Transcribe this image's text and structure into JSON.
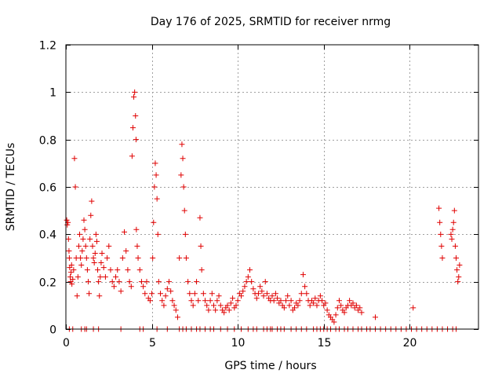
{
  "chart_data": {
    "type": "scatter",
    "title": "Day 176 of 2025, SRMTID for receiver nrmg",
    "xlabel": "GPS time / hours",
    "ylabel": "SRMTID / TECUs",
    "xlim": [
      0,
      24
    ],
    "ylim": [
      0,
      1.2
    ],
    "xticks": [
      0,
      5,
      10,
      15,
      20
    ],
    "yticks": [
      0,
      0.2,
      0.4,
      0.6,
      0.8,
      1,
      1.2
    ],
    "xtick_labels": [
      "0",
      "5",
      "10",
      "15",
      "20"
    ],
    "ytick_labels": [
      "0",
      "0.2",
      "0.4",
      "0.6",
      "0.8",
      "1",
      "1.2"
    ],
    "grid": true,
    "marker": "+",
    "color": "#e00000",
    "series": [
      {
        "name": "SRMTID",
        "points": [
          [
            0.05,
            0.46
          ],
          [
            0.08,
            0.44
          ],
          [
            0.12,
            0.45
          ],
          [
            0.15,
            0.38
          ],
          [
            0.18,
            0.33
          ],
          [
            0.2,
            0.3
          ],
          [
            0.22,
            0.26
          ],
          [
            0.25,
            0.22
          ],
          [
            0.28,
            0.2
          ],
          [
            0.3,
            0.24
          ],
          [
            0.33,
            0.27
          ],
          [
            0.35,
            0.19
          ],
          [
            0.4,
            0.21
          ],
          [
            0.45,
            0.25
          ],
          [
            0.5,
            0.72
          ],
          [
            0.55,
            0.6
          ],
          [
            0.6,
            0.3
          ],
          [
            0.65,
            0.14
          ],
          [
            0.7,
            0.22
          ],
          [
            0.75,
            0.35
          ],
          [
            0.8,
            0.4
          ],
          [
            0.85,
            0.3
          ],
          [
            0.9,
            0.27
          ],
          [
            0.95,
            0.33
          ],
          [
            1.0,
            0.38
          ],
          [
            1.05,
            0.46
          ],
          [
            1.1,
            0.42
          ],
          [
            1.15,
            0.35
          ],
          [
            1.2,
            0.3
          ],
          [
            1.25,
            0.25
          ],
          [
            1.3,
            0.2
          ],
          [
            1.35,
            0.15
          ],
          [
            1.4,
            0.38
          ],
          [
            1.45,
            0.48
          ],
          [
            1.5,
            0.54
          ],
          [
            1.55,
            0.35
          ],
          [
            1.6,
            0.3
          ],
          [
            1.65,
            0.28
          ],
          [
            1.7,
            0.32
          ],
          [
            1.75,
            0.4
          ],
          [
            1.8,
            0.37
          ],
          [
            1.85,
            0.25
          ],
          [
            1.9,
            0.2
          ],
          [
            1.95,
            0.14
          ],
          [
            2.0,
            0.22
          ],
          [
            2.05,
            0.28
          ],
          [
            2.1,
            0.32
          ],
          [
            2.2,
            0.26
          ],
          [
            2.3,
            0.22
          ],
          [
            2.4,
            0.3
          ],
          [
            2.5,
            0.35
          ],
          [
            2.6,
            0.25
          ],
          [
            2.7,
            0.2
          ],
          [
            2.8,
            0.18
          ],
          [
            2.9,
            0.22
          ],
          [
            3.0,
            0.25
          ],
          [
            3.1,
            0.2
          ],
          [
            3.2,
            0.16
          ],
          [
            3.3,
            0.3
          ],
          [
            3.4,
            0.41
          ],
          [
            3.5,
            0.33
          ],
          [
            3.6,
            0.25
          ],
          [
            3.7,
            0.2
          ],
          [
            3.8,
            0.18
          ],
          [
            3.85,
            0.73
          ],
          [
            3.9,
            0.85
          ],
          [
            3.95,
            0.98
          ],
          [
            4.0,
            1.0
          ],
          [
            4.05,
            0.9
          ],
          [
            4.08,
            0.8
          ],
          [
            4.1,
            0.42
          ],
          [
            4.15,
            0.35
          ],
          [
            4.2,
            0.3
          ],
          [
            4.3,
            0.25
          ],
          [
            4.4,
            0.2
          ],
          [
            4.5,
            0.18
          ],
          [
            4.6,
            0.15
          ],
          [
            4.7,
            0.2
          ],
          [
            4.8,
            0.13
          ],
          [
            4.9,
            0.12
          ],
          [
            5.0,
            0.15
          ],
          [
            5.05,
            0.3
          ],
          [
            5.1,
            0.45
          ],
          [
            5.15,
            0.6
          ],
          [
            5.2,
            0.7
          ],
          [
            5.25,
            0.65
          ],
          [
            5.3,
            0.55
          ],
          [
            5.35,
            0.4
          ],
          [
            5.4,
            0.2
          ],
          [
            5.5,
            0.15
          ],
          [
            5.6,
            0.12
          ],
          [
            5.7,
            0.1
          ],
          [
            5.8,
            0.14
          ],
          [
            5.9,
            0.17
          ],
          [
            6.0,
            0.2
          ],
          [
            6.1,
            0.16
          ],
          [
            6.2,
            0.12
          ],
          [
            6.3,
            0.1
          ],
          [
            6.4,
            0.08
          ],
          [
            6.5,
            0.05
          ],
          [
            6.6,
            0.3
          ],
          [
            6.7,
            0.65
          ],
          [
            6.75,
            0.78
          ],
          [
            6.8,
            0.72
          ],
          [
            6.85,
            0.6
          ],
          [
            6.9,
            0.5
          ],
          [
            6.95,
            0.4
          ],
          [
            7.0,
            0.3
          ],
          [
            7.1,
            0.2
          ],
          [
            7.2,
            0.15
          ],
          [
            7.3,
            0.12
          ],
          [
            7.4,
            0.1
          ],
          [
            7.5,
            0.15
          ],
          [
            7.6,
            0.2
          ],
          [
            7.7,
            0.12
          ],
          [
            7.8,
            0.47
          ],
          [
            7.85,
            0.35
          ],
          [
            7.9,
            0.25
          ],
          [
            8.0,
            0.15
          ],
          [
            8.1,
            0.12
          ],
          [
            8.2,
            0.1
          ],
          [
            8.3,
            0.08
          ],
          [
            8.4,
            0.12
          ],
          [
            8.5,
            0.15
          ],
          [
            8.6,
            0.1
          ],
          [
            8.7,
            0.08
          ],
          [
            8.8,
            0.12
          ],
          [
            8.9,
            0.14
          ],
          [
            9.0,
            0.1
          ],
          [
            9.1,
            0.08
          ],
          [
            9.2,
            0.07
          ],
          [
            9.3,
            0.09
          ],
          [
            9.4,
            0.1
          ],
          [
            9.5,
            0.08
          ],
          [
            9.6,
            0.11
          ],
          [
            9.7,
            0.13
          ],
          [
            9.8,
            0.09
          ],
          [
            9.9,
            0.1
          ],
          [
            10.0,
            0.12
          ],
          [
            10.1,
            0.15
          ],
          [
            10.2,
            0.14
          ],
          [
            10.3,
            0.16
          ],
          [
            10.4,
            0.18
          ],
          [
            10.5,
            0.2
          ],
          [
            10.6,
            0.22
          ],
          [
            10.7,
            0.25
          ],
          [
            10.8,
            0.2
          ],
          [
            10.9,
            0.17
          ],
          [
            11.0,
            0.15
          ],
          [
            11.1,
            0.13
          ],
          [
            11.2,
            0.15
          ],
          [
            11.3,
            0.18
          ],
          [
            11.4,
            0.16
          ],
          [
            11.5,
            0.14
          ],
          [
            11.6,
            0.2
          ],
          [
            11.7,
            0.15
          ],
          [
            11.8,
            0.13
          ],
          [
            11.9,
            0.12
          ],
          [
            12.0,
            0.14
          ],
          [
            12.1,
            0.12
          ],
          [
            12.2,
            0.15
          ],
          [
            12.3,
            0.13
          ],
          [
            12.4,
            0.11
          ],
          [
            12.5,
            0.12
          ],
          [
            12.6,
            0.1
          ],
          [
            12.7,
            0.09
          ],
          [
            12.8,
            0.12
          ],
          [
            12.9,
            0.14
          ],
          [
            13.0,
            0.1
          ],
          [
            13.1,
            0.12
          ],
          [
            13.2,
            0.08
          ],
          [
            13.3,
            0.09
          ],
          [
            13.4,
            0.11
          ],
          [
            13.5,
            0.1
          ],
          [
            13.6,
            0.12
          ],
          [
            13.7,
            0.15
          ],
          [
            13.8,
            0.23
          ],
          [
            13.9,
            0.18
          ],
          [
            14.0,
            0.15
          ],
          [
            14.1,
            0.12
          ],
          [
            14.2,
            0.1
          ],
          [
            14.3,
            0.12
          ],
          [
            14.4,
            0.11
          ],
          [
            14.5,
            0.13
          ],
          [
            14.6,
            0.1
          ],
          [
            14.7,
            0.12
          ],
          [
            14.8,
            0.14
          ],
          [
            14.9,
            0.12
          ],
          [
            15.0,
            0.1
          ],
          [
            15.1,
            0.11
          ],
          [
            15.2,
            0.08
          ],
          [
            15.3,
            0.06
          ],
          [
            15.4,
            0.05
          ],
          [
            15.5,
            0.04
          ],
          [
            15.6,
            0.03
          ],
          [
            15.7,
            0.06
          ],
          [
            15.8,
            0.09
          ],
          [
            15.9,
            0.12
          ],
          [
            16.0,
            0.1
          ],
          [
            16.1,
            0.08
          ],
          [
            16.2,
            0.07
          ],
          [
            16.3,
            0.09
          ],
          [
            16.4,
            0.1
          ],
          [
            16.5,
            0.12
          ],
          [
            16.6,
            0.1
          ],
          [
            16.7,
            0.11
          ],
          [
            16.8,
            0.09
          ],
          [
            16.9,
            0.1
          ],
          [
            17.0,
            0.08
          ],
          [
            17.1,
            0.09
          ],
          [
            17.2,
            0.07
          ],
          [
            18.0,
            0.05
          ],
          [
            20.2,
            0.09
          ],
          [
            21.7,
            0.51
          ],
          [
            21.75,
            0.45
          ],
          [
            21.8,
            0.4
          ],
          [
            21.85,
            0.35
          ],
          [
            21.9,
            0.3
          ],
          [
            22.4,
            0.4
          ],
          [
            22.45,
            0.38
          ],
          [
            22.5,
            0.42
          ],
          [
            22.55,
            0.45
          ],
          [
            22.6,
            0.5
          ],
          [
            22.65,
            0.35
          ],
          [
            22.7,
            0.3
          ],
          [
            22.75,
            0.25
          ],
          [
            22.8,
            0.2
          ],
          [
            22.85,
            0.22
          ],
          [
            22.9,
            0.27
          ],
          [
            0.2,
            0.0
          ],
          [
            0.4,
            0.0
          ],
          [
            0.9,
            0.0
          ],
          [
            1.1,
            0.0
          ],
          [
            1.2,
            0.0
          ],
          [
            1.6,
            0.0
          ],
          [
            1.9,
            0.0
          ],
          [
            3.2,
            0.0
          ],
          [
            4.3,
            0.0
          ],
          [
            4.5,
            0.0
          ],
          [
            5.3,
            0.0
          ],
          [
            5.9,
            0.0
          ],
          [
            6.6,
            0.0
          ],
          [
            6.8,
            0.0
          ],
          [
            7.0,
            0.0
          ],
          [
            7.3,
            0.0
          ],
          [
            7.6,
            0.0
          ],
          [
            7.8,
            0.0
          ],
          [
            8.1,
            0.0
          ],
          [
            8.4,
            0.0
          ],
          [
            8.6,
            0.0
          ],
          [
            9.0,
            0.0
          ],
          [
            9.4,
            0.0
          ],
          [
            9.8,
            0.0
          ],
          [
            10.2,
            0.0
          ],
          [
            10.6,
            0.0
          ],
          [
            10.9,
            0.0
          ],
          [
            11.1,
            0.0
          ],
          [
            11.5,
            0.0
          ],
          [
            11.7,
            0.0
          ],
          [
            11.9,
            0.0
          ],
          [
            12.0,
            0.0
          ],
          [
            12.3,
            0.0
          ],
          [
            12.5,
            0.0
          ],
          [
            12.7,
            0.0
          ],
          [
            13.1,
            0.0
          ],
          [
            13.4,
            0.0
          ],
          [
            13.7,
            0.0
          ],
          [
            14.0,
            0.0
          ],
          [
            14.4,
            0.0
          ],
          [
            14.6,
            0.0
          ],
          [
            14.8,
            0.0
          ],
          [
            15.0,
            0.0
          ],
          [
            15.2,
            0.0
          ],
          [
            15.4,
            0.0
          ],
          [
            15.7,
            0.0
          ],
          [
            15.9,
            0.0
          ],
          [
            16.2,
            0.0
          ],
          [
            16.4,
            0.0
          ],
          [
            16.7,
            0.0
          ],
          [
            17.0,
            0.0
          ],
          [
            17.2,
            0.0
          ],
          [
            17.5,
            0.0
          ],
          [
            17.7,
            0.0
          ],
          [
            18.0,
            0.0
          ],
          [
            18.3,
            0.0
          ],
          [
            18.6,
            0.0
          ],
          [
            18.9,
            0.0
          ],
          [
            19.2,
            0.0
          ],
          [
            19.5,
            0.0
          ],
          [
            19.8,
            0.0
          ],
          [
            20.1,
            0.0
          ],
          [
            20.4,
            0.0
          ],
          [
            20.7,
            0.0
          ],
          [
            21.0,
            0.0
          ],
          [
            21.3,
            0.0
          ],
          [
            21.6,
            0.0
          ],
          [
            21.9,
            0.0
          ],
          [
            22.2,
            0.0
          ],
          [
            22.5,
            0.0
          ],
          [
            22.7,
            0.0
          ]
        ]
      }
    ]
  }
}
